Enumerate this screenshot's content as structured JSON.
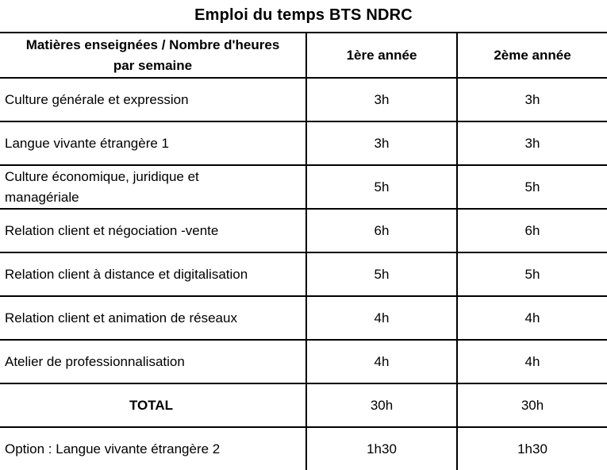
{
  "page": {
    "title": "Emploi du temps BTS NDRC"
  },
  "colors": {
    "text": "#000000",
    "border": "#000000",
    "background": "#ffffff"
  },
  "table": {
    "header": {
      "col1_lines": [
        "Matières enseignées / Nombre d'heures",
        "par semaine"
      ],
      "col2": "1ère année",
      "col3": "2ème année"
    },
    "rows": [
      {
        "label_lines": [
          "Culture générale et expression"
        ],
        "year1": "3h",
        "year2": "3h"
      },
      {
        "label_lines": [
          "Langue vivante étrangère 1"
        ],
        "year1": "3h",
        "year2": "3h"
      },
      {
        "label_lines": [
          "Culture économique, juridique et",
          "managériale"
        ],
        "year1": "5h",
        "year2": "5h"
      },
      {
        "label_lines": [
          "Relation client et négociation -vente"
        ],
        "year1": "6h",
        "year2": "6h"
      },
      {
        "label_lines": [
          "Relation client à distance et digitalisation"
        ],
        "year1": "5h",
        "year2": "5h"
      },
      {
        "label_lines": [
          "Relation client et animation de réseaux"
        ],
        "year1": "4h",
        "year2": "4h"
      },
      {
        "label_lines": [
          "Atelier de professionnalisation"
        ],
        "year1": "4h",
        "year2": "4h"
      },
      {
        "label_lines": [
          "TOTAL"
        ],
        "year1": "30h",
        "year2": "30h"
      },
      {
        "label_lines": [
          "Option : Langue vivante étrangère 2"
        ],
        "year1": "1h30",
        "year2": "1h30"
      }
    ]
  }
}
